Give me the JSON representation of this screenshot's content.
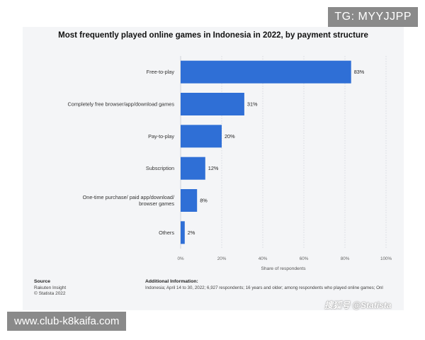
{
  "badges": {
    "top_right": "TG: MYYJJPP",
    "bottom_left": "www.club-k8kaifa.com"
  },
  "watermark": "搜狐号 @Statista",
  "colors": {
    "bar": "#2f6fd6",
    "panel": "#f4f5f7"
  },
  "chart_data": {
    "type": "bar",
    "orientation": "horizontal",
    "title": "Most frequently played online games in Indonesia in 2022, by payment structure",
    "xlabel": "Share of respondents",
    "categories": [
      "Free-to-play",
      "Completely free browser/app/download games",
      "Pay-to-play",
      "Subscription",
      "One-time purchase/ paid app/download/browser games",
      "Others"
    ],
    "values": [
      83,
      31,
      20,
      12,
      8,
      2
    ],
    "value_labels": [
      "83%",
      "31%",
      "20%",
      "12%",
      "8%",
      "2%"
    ],
    "xlim": [
      0,
      100
    ],
    "xticks": [
      "0%",
      "20%",
      "40%",
      "60%",
      "80%",
      "100%"
    ],
    "grid": true
  },
  "footer": {
    "source_heading": "Source",
    "source_lines": [
      "Rakuten Insight",
      "© Statista 2022"
    ],
    "additional_heading": "Additional Information:",
    "additional_text": "Indonesia; April 14 to 30, 2022; 6,927 respondents; 16 years and older; among respondents who played online games; Onl"
  }
}
